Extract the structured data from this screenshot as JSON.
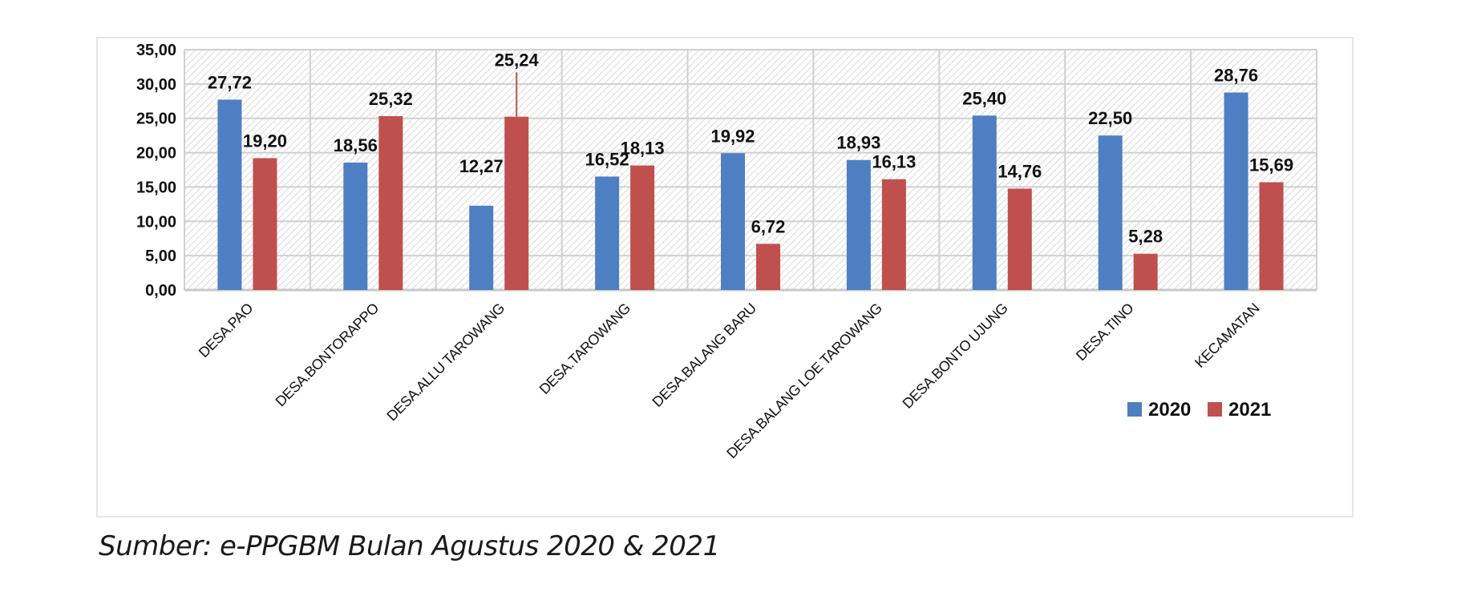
{
  "source_note": "Sumber: e-PPGBM Bulan Agustus 2020 & 2021",
  "chart_data": {
    "type": "bar",
    "title": "",
    "xlabel": "",
    "ylabel": "",
    "ylim": [
      0,
      35
    ],
    "yticks": [
      "0,00",
      "5,00",
      "10,00",
      "15,00",
      "20,00",
      "25,00",
      "30,00",
      "35,00"
    ],
    "grid": true,
    "legend": "bottom-right",
    "categories": [
      "DESA.PAO",
      "DESA.BONTORAPPO",
      "DESA.ALLU TAROWANG",
      "DESA.TAROWANG",
      "DESA.BALANG BARU",
      "DESA.BALANG LOE TAROWANG",
      "DESA.BONTO UJUNG",
      "DESA.TINO",
      "KECAMATAN"
    ],
    "series": [
      {
        "name": "2020",
        "color": "#4f7fc3",
        "values": [
          27.72,
          18.56,
          12.27,
          16.52,
          19.92,
          18.93,
          25.4,
          22.5,
          28.76
        ],
        "labels": [
          "27,72",
          "18,56",
          "12,27",
          "16,52",
          "19,92",
          "18,93",
          "25,40",
          "22,50",
          "28,76"
        ]
      },
      {
        "name": "2021",
        "color": "#c0504d",
        "values": [
          19.2,
          25.32,
          25.24,
          18.13,
          6.72,
          16.13,
          14.76,
          5.28,
          15.69
        ],
        "labels": [
          "19,20",
          "25,32",
          "25,24",
          "18,13",
          "6,72",
          "16,13",
          "14,76",
          "5,28",
          "15,69"
        ]
      }
    ]
  }
}
